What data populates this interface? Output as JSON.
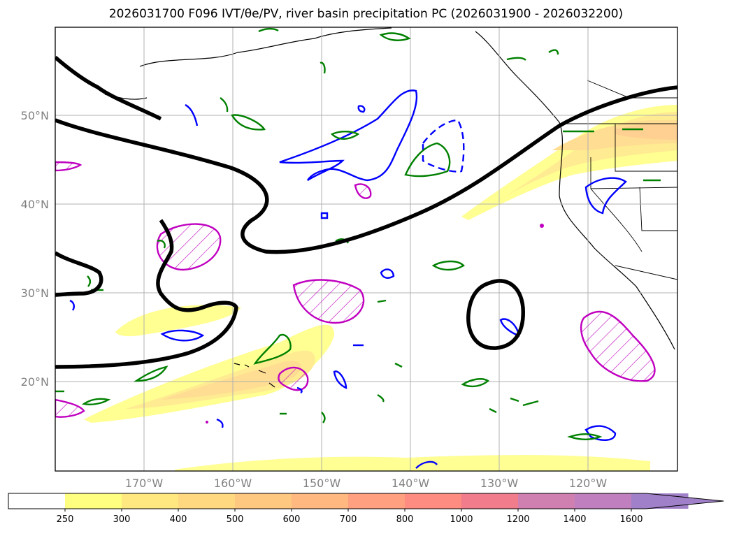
{
  "title": "2026031700 F096 IVT/θe/PV, river basin precipitation PC (2026031900 - 2026032200)",
  "map": {
    "lat_labels": [
      "50°N",
      "40°N",
      "30°N",
      "20°N"
    ],
    "lon_labels": [
      "170°W",
      "160°W",
      "150°W",
      "140°W",
      "130°W",
      "120°W"
    ]
  },
  "colorbar": {
    "ticks": [
      "250",
      "300",
      "400",
      "500",
      "600",
      "700",
      "800",
      "1000",
      "1200",
      "1400",
      "1600"
    ],
    "colors": [
      "#ffffff",
      "#ffff80",
      "#ffe880",
      "#ffd880",
      "#ffc880",
      "#ffb880",
      "#ffa080",
      "#ff8c80",
      "#f07c8c",
      "#d080b0",
      "#c080c0",
      "#a080c8"
    ]
  },
  "colors": {
    "ivt_contour": "#000000",
    "theta_e_positive": "#0000ff",
    "pv_contour": "#008000",
    "hatched_region": "#c000c0",
    "gridline": "#b0b0b0"
  }
}
